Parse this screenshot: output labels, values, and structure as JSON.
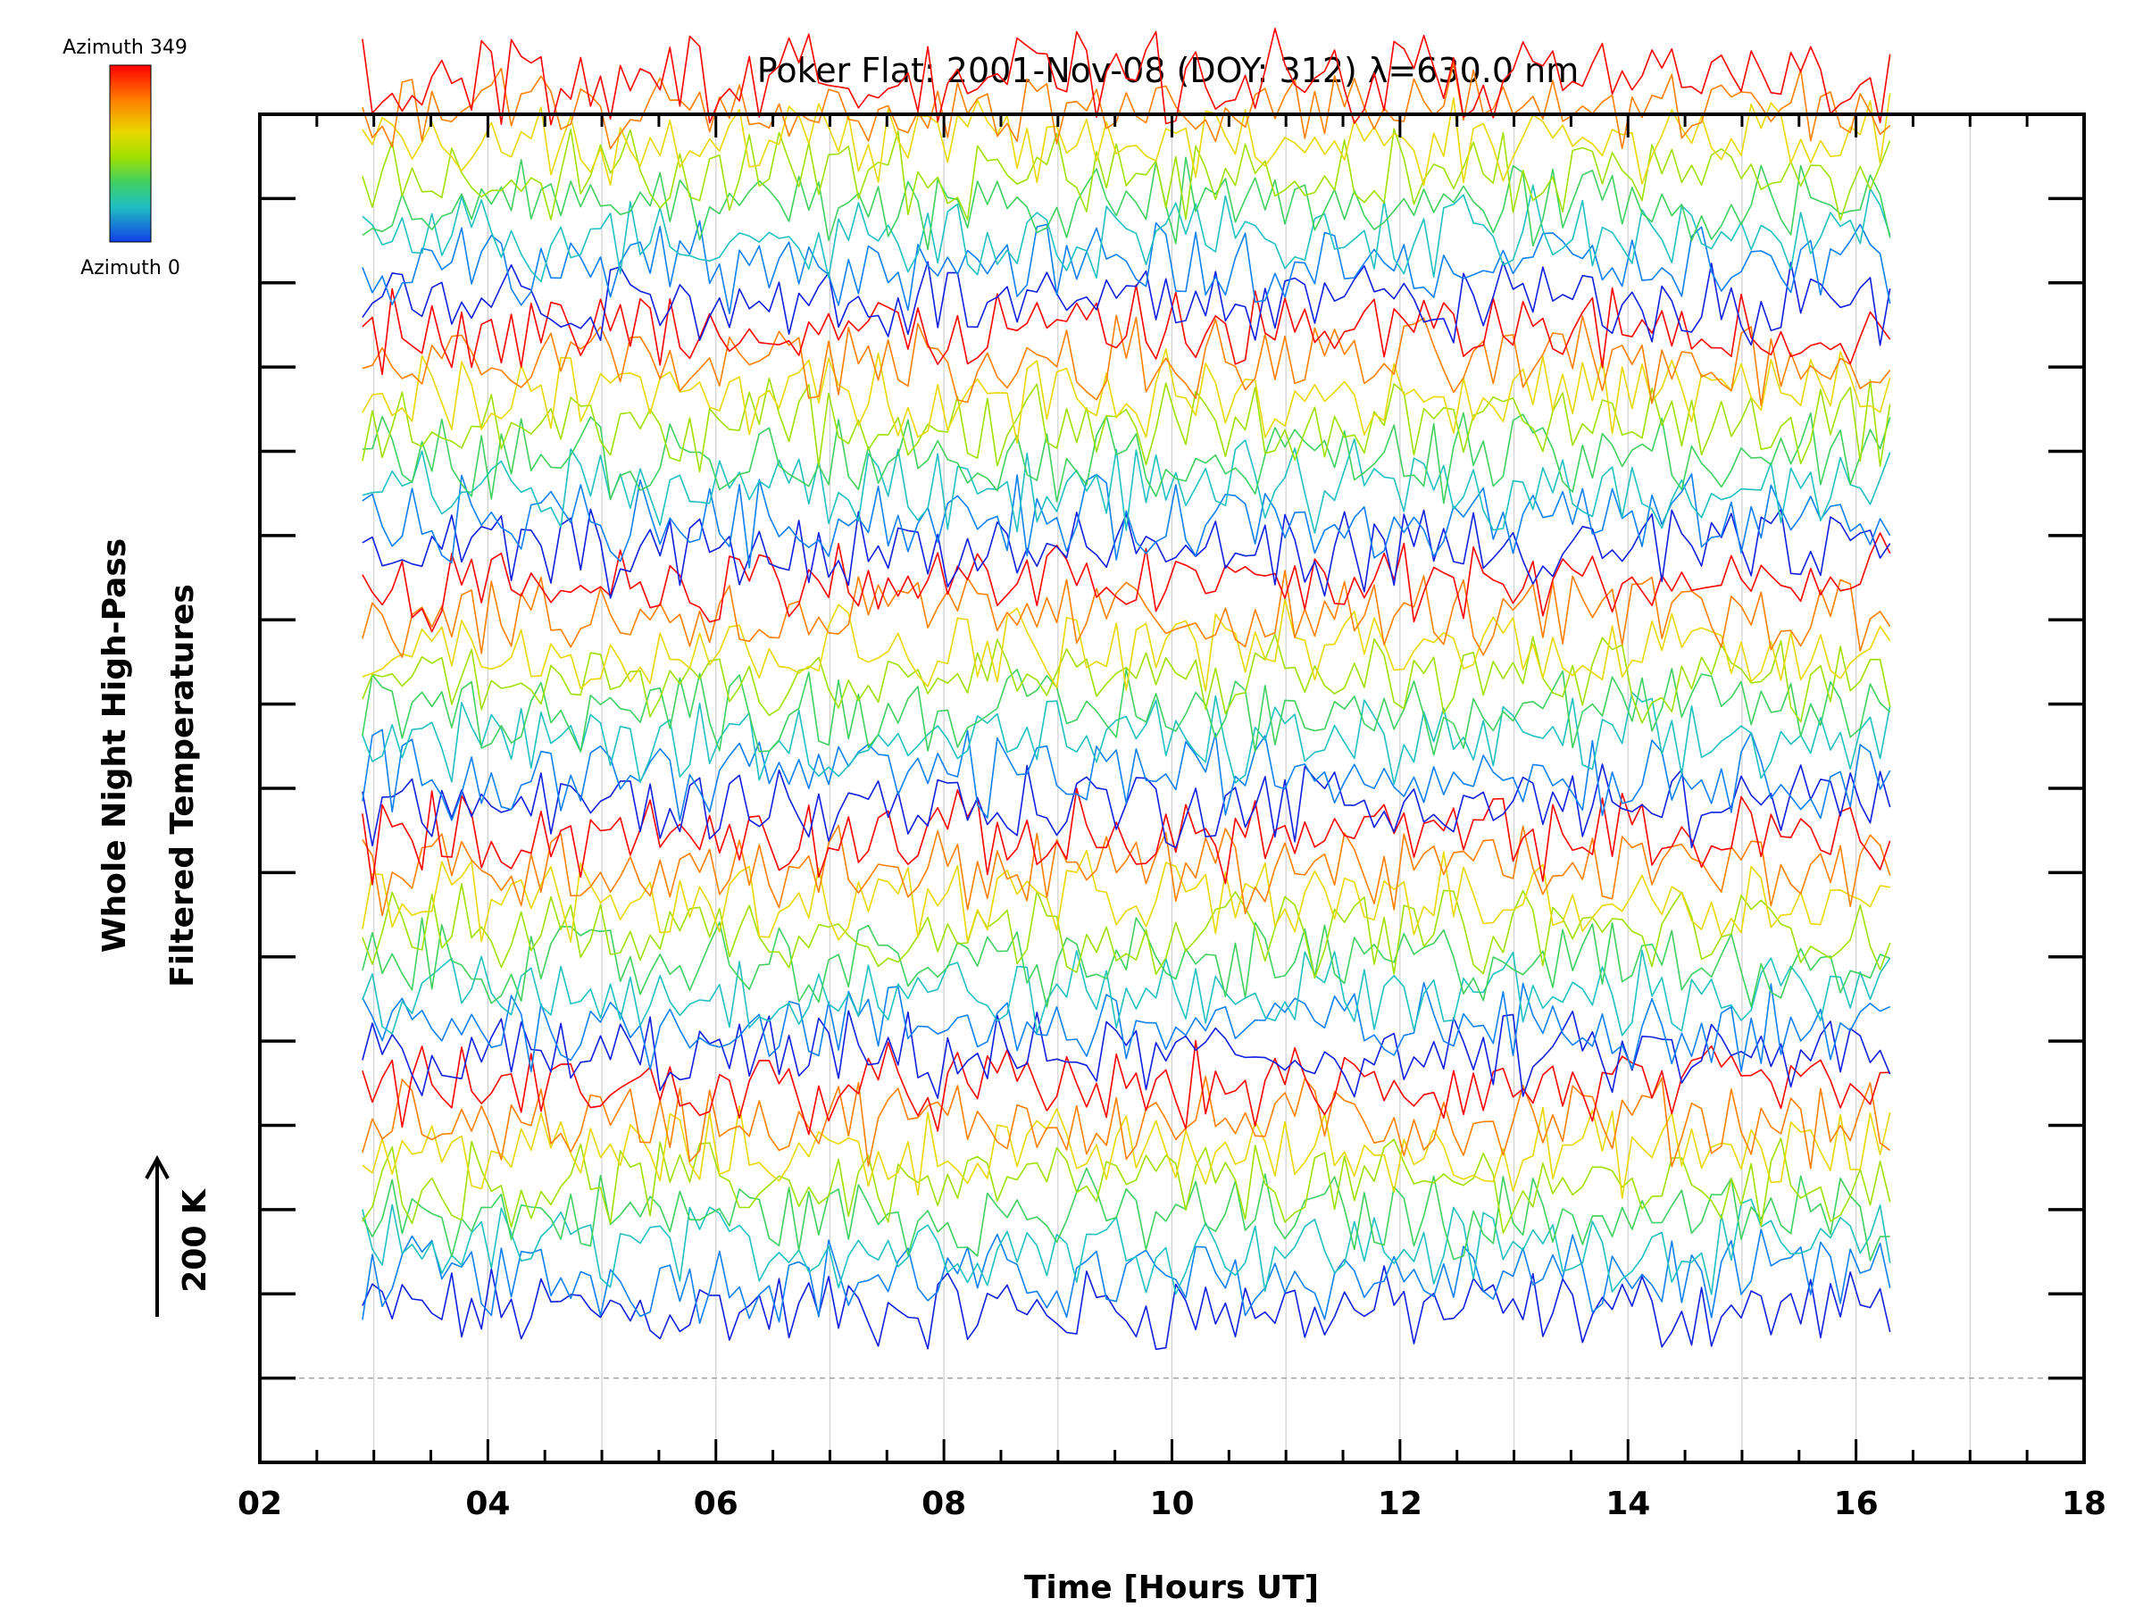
{
  "chart_data": {
    "type": "line",
    "title": "Poker Flat: 2001-Nov-08 (DOY: 312) λ=630.0 nm",
    "xlabel": "Time [Hours UT]",
    "ylabel_line1": "Whole Night High-Pass",
    "ylabel_line2": "Filtered Temperatures",
    "scale_label": "200 K",
    "colorbar": {
      "top_label": "Azimuth 349",
      "bottom_label": "Azimuth 0",
      "colors": [
        "#ff0000",
        "#ff8000",
        "#e8d800",
        "#a0e000",
        "#40d060",
        "#20c0c0",
        "#1080f0",
        "#1020e0"
      ]
    },
    "xlim": [
      2,
      18
    ],
    "x_tick_labels": [
      "02",
      "04",
      "06",
      "08",
      "10",
      "12",
      "14",
      "16",
      "18"
    ],
    "x_ticks": [
      2,
      4,
      6,
      8,
      10,
      12,
      14,
      16,
      18
    ],
    "grid_x": [
      3,
      4,
      5,
      6,
      7,
      8,
      9,
      10,
      11,
      12,
      13,
      14,
      15,
      16,
      17
    ],
    "data_x_range": [
      2.9,
      16.35
    ],
    "ylim": [
      -100,
      1500
    ],
    "y_major_step": 100,
    "reference_line_y": 0,
    "traces_per_group": 8,
    "group_offsets": [
      100,
      400,
      700,
      1000,
      1300
    ],
    "noise_amplitude_K": 40,
    "series_count": 40
  },
  "colors": {
    "axis": "#000000",
    "grid": "#d0d0d0",
    "reference_line": "#a0a0a0"
  }
}
